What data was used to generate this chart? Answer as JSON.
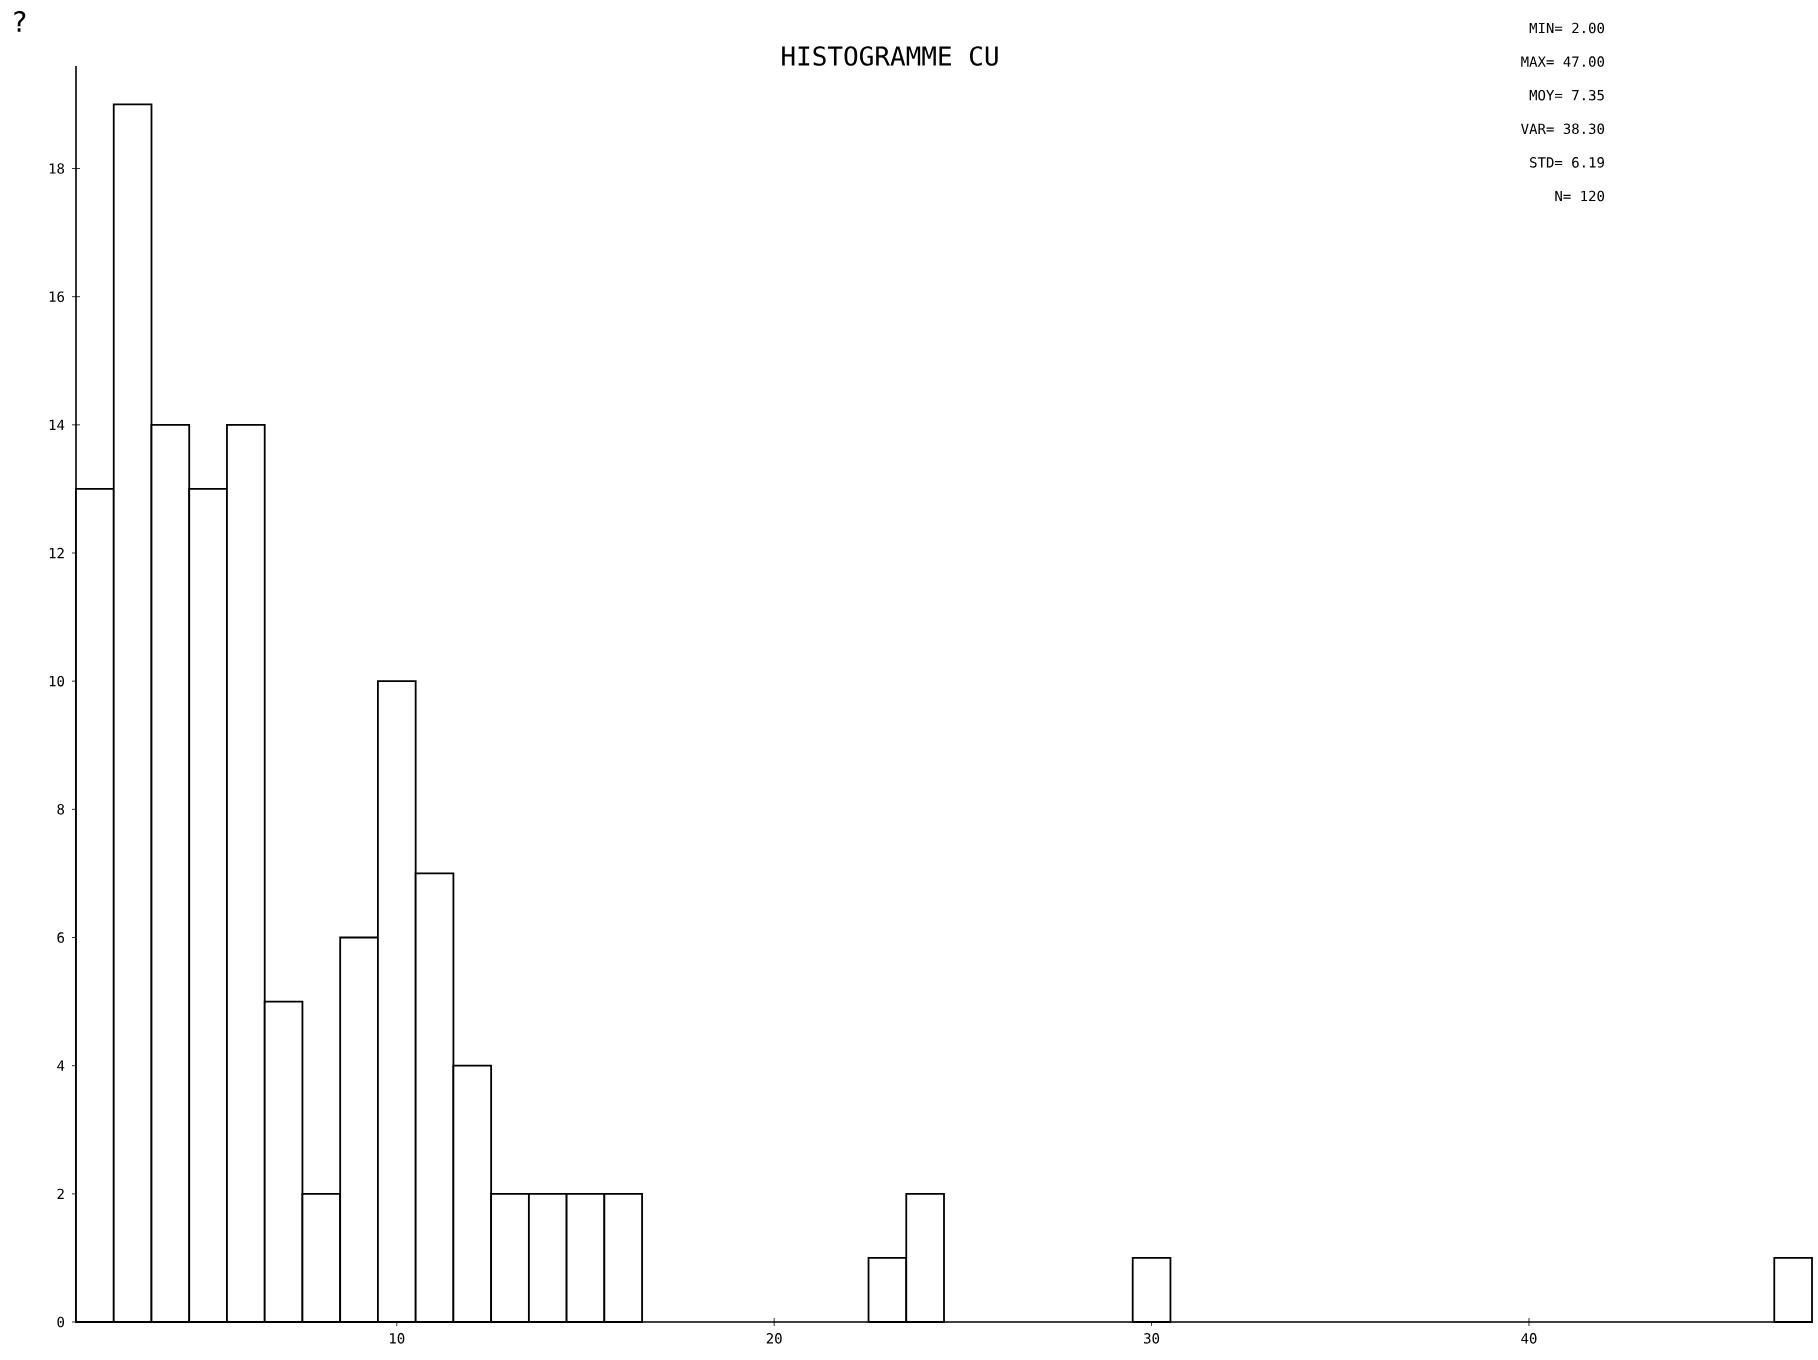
{
  "chart_data": {
    "type": "histogram",
    "title": "HISTOGRAMME CU",
    "bins": [
      1.5,
      2.5,
      3.5,
      4.5,
      5.5,
      6.5,
      7.5,
      8.5,
      9.5,
      10.5,
      11.5,
      12.5,
      13.5,
      14.5,
      15.5,
      16.5,
      17.5,
      18.5,
      19.5,
      20.5,
      21.5,
      22.5,
      23.5,
      24.5,
      25.5,
      26.5,
      27.5,
      28.5,
      29.5,
      30.5,
      31.5,
      32.5,
      33.5,
      34.5,
      35.5,
      36.5,
      37.5,
      38.5,
      39.5,
      40.5,
      41.5,
      42.5,
      43.5,
      44.5,
      45.5,
      46.5,
      47.5
    ],
    "values": [
      13,
      19,
      14,
      13,
      14,
      5,
      2,
      6,
      10,
      7,
      4,
      2,
      2,
      2,
      2,
      0,
      0,
      0,
      0,
      0,
      0,
      1,
      2,
      0,
      0,
      0,
      0,
      0,
      1,
      0,
      0,
      0,
      0,
      0,
      0,
      0,
      0,
      0,
      0,
      0,
      0,
      0,
      0,
      0,
      0,
      1
    ],
    "color": "#ffffff",
    "xlim": [
      1.5,
      47.5
    ],
    "xticks": [
      10,
      20,
      30,
      40
    ],
    "ylim": [
      0,
      19.6
    ],
    "yticks": [
      0,
      2,
      4,
      6,
      8,
      10,
      12,
      14,
      16,
      18
    ],
    "grid": false,
    "annotations": [
      "?",
      "MIN= 2.00",
      "MAX= 47.00",
      "MOY= 7.35",
      "VAR= 38.30",
      "STD= 6.19",
      "N= 120"
    ]
  }
}
